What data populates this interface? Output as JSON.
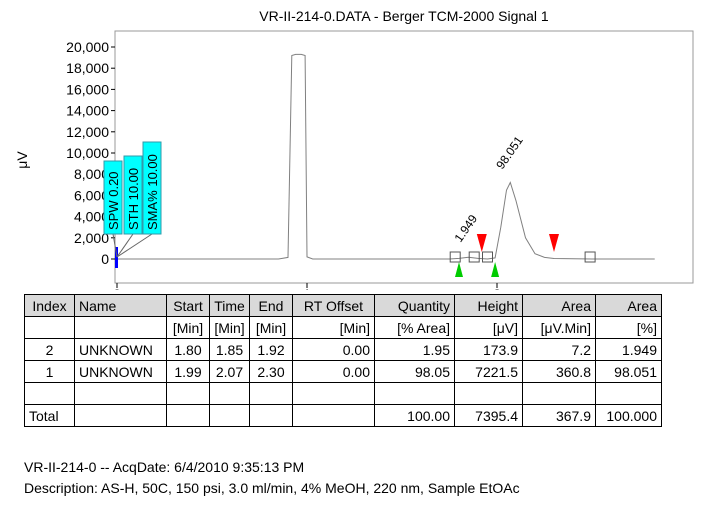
{
  "chart_data": {
    "type": "line",
    "title": "VR-II-214-0.DATA - Berger TCM-2000 Signal 1",
    "ylabel": "μV",
    "xlabel": "",
    "xlim": [
      0,
      2.83
    ],
    "ylim": [
      -1100,
      21000
    ],
    "x_ticks": [
      "0",
      "1",
      "2"
    ],
    "y_ticks": [
      "0",
      "2,000",
      "4,000",
      "6,000",
      "8,000",
      "10,000",
      "12,000",
      "14,000",
      "16,000",
      "18,000",
      "20,000"
    ],
    "series": [
      {
        "x": [
          0,
          0.85,
          0.9,
          0.92,
          0.94,
          0.97,
          0.99,
          1.0,
          1.03,
          1.1,
          1.5,
          1.75,
          1.8,
          1.85,
          1.9,
          1.95,
          1.99,
          2.02,
          2.05,
          2.07,
          2.1,
          2.15,
          2.2,
          2.25,
          2.3,
          2.5,
          2.83
        ],
        "y": [
          0,
          0,
          150,
          19200,
          19300,
          19300,
          19200,
          200,
          0,
          0,
          0,
          0,
          60,
          174,
          60,
          0,
          100,
          3000,
          6500,
          7220,
          5500,
          2000,
          500,
          150,
          50,
          0,
          0
        ]
      }
    ],
    "peak_labels": [
      {
        "text": "1.949",
        "x": 1.85
      },
      {
        "text": "98.051",
        "x": 2.07
      }
    ],
    "method_labels": [
      "SPW 0.20",
      "STH 10.00",
      "SMA% 10.00"
    ],
    "markers": [
      {
        "type": "start-triangle",
        "color": "#00cc00",
        "x": 1.8
      },
      {
        "type": "start-triangle",
        "color": "#00cc00",
        "x": 1.99
      },
      {
        "type": "end-triangle",
        "color": "#ff0000",
        "x": 1.92
      },
      {
        "type": "end-triangle",
        "color": "#ff0000",
        "x": 2.3
      }
    ],
    "baseline_boxes": [
      1.78,
      1.88,
      1.95,
      2.49
    ]
  },
  "table": {
    "headers": [
      "Index",
      "Name",
      "Start",
      "Time",
      "End",
      "RT Offset",
      "Quantity",
      "Height",
      "Area",
      "Area"
    ],
    "units": [
      "",
      "",
      "[Min]",
      "[Min]",
      "[Min]",
      "[Min]",
      "[% Area]",
      "[μV]",
      "[μV.Min]",
      "[%]"
    ],
    "rows": [
      [
        "2",
        "UNKNOWN",
        "1.80",
        "1.85",
        "1.92",
        "0.00",
        "1.95",
        "173.9",
        "7.2",
        "1.949"
      ],
      [
        "1",
        "UNKNOWN",
        "1.99",
        "2.07",
        "2.30",
        "0.00",
        "98.05",
        "7221.5",
        "360.8",
        "98.051"
      ],
      [
        "",
        "",
        "",
        "",
        "",
        "",
        "",
        "",
        "",
        ""
      ]
    ],
    "total": [
      "Total",
      "",
      "",
      "",
      "",
      "",
      "100.00",
      "7395.4",
      "367.9",
      "100.000"
    ]
  },
  "footer": {
    "line1": "VR-II-214-0 -- AcqDate: 6/4/2010 9:35:13 PM",
    "line2": "Description: AS-H, 50C, 150 psi, 3.0 ml/min, 4% MeOH, 220 nm, Sample EtOAc"
  },
  "colors": {
    "trace": "#808080",
    "method_box": "#00ffff",
    "start_marker": "#00cc00",
    "end_marker": "#ff0000",
    "blue_bar": "#0000ff"
  }
}
